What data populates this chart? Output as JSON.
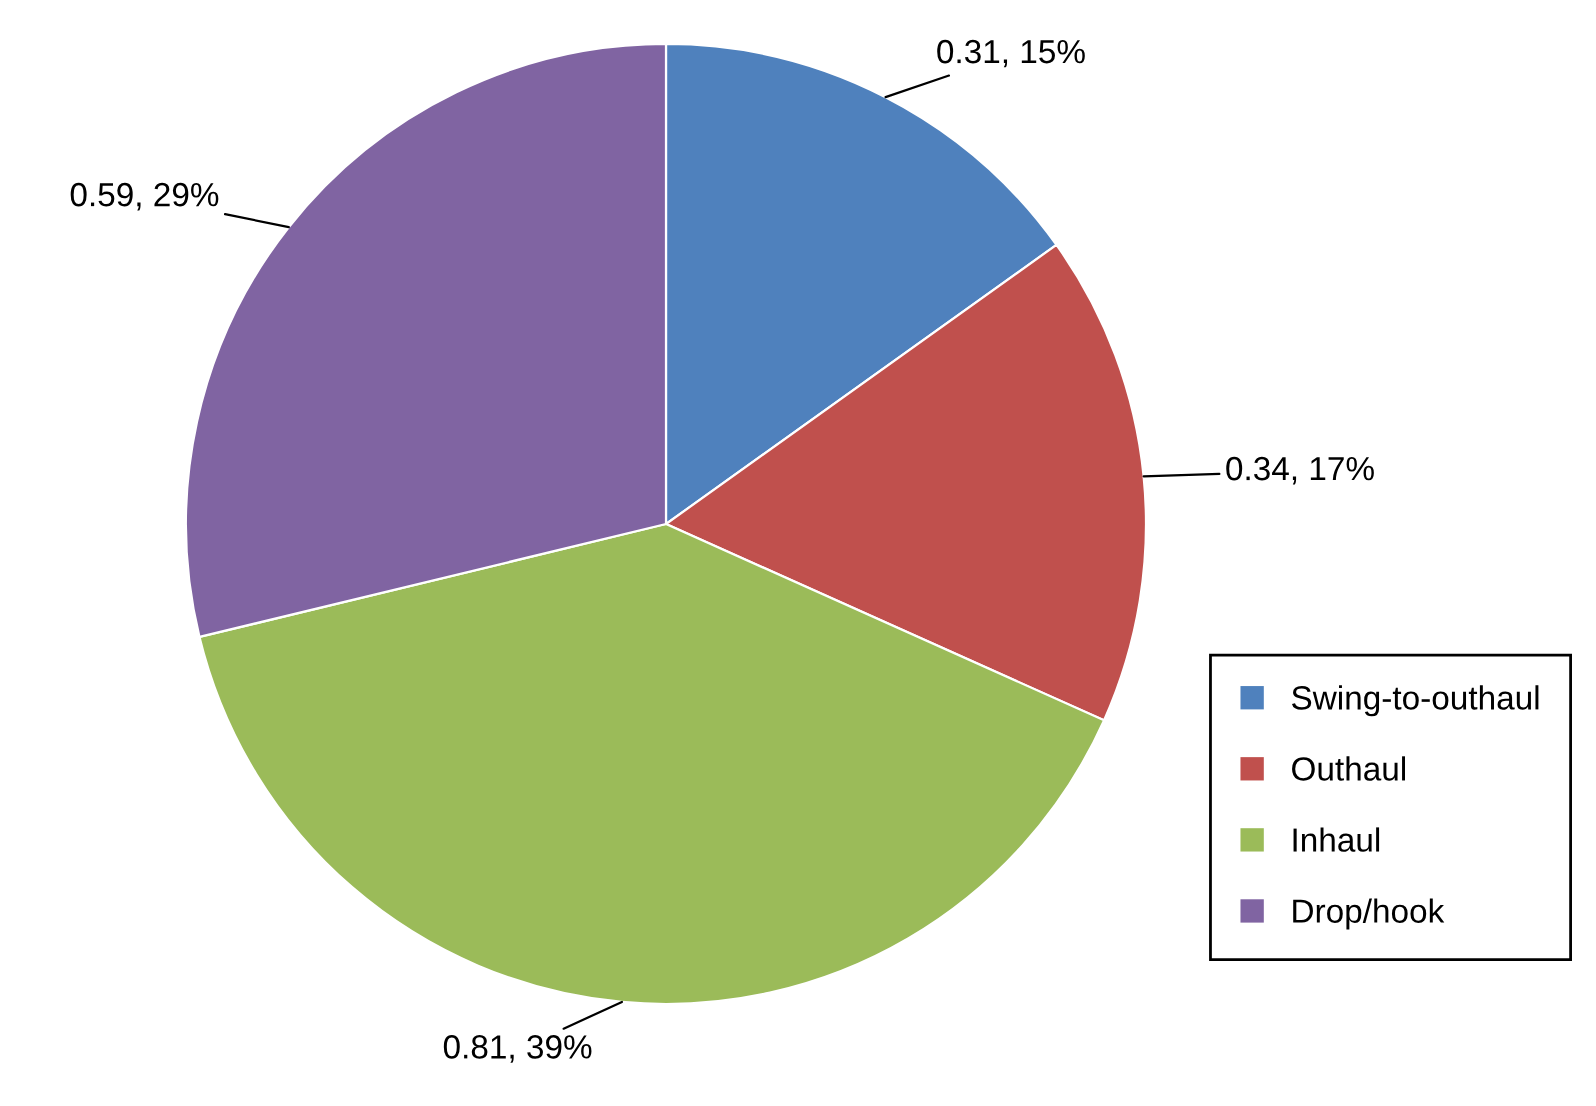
{
  "chart_data": {
    "type": "pie",
    "categories": [
      "Swing-to-outhaul",
      "Outhaul",
      "Inhaul",
      "Drop/hook"
    ],
    "values": [
      0.31,
      0.34,
      0.81,
      0.59
    ],
    "colors": [
      "#4f81bd",
      "#c0504d",
      "#9bbb59",
      "#8064a2"
    ],
    "value_labels": [
      "0.31, 15%",
      "0.34, 17%",
      "0.81, 39%",
      "0.59, 29%"
    ],
    "legend": "right"
  }
}
